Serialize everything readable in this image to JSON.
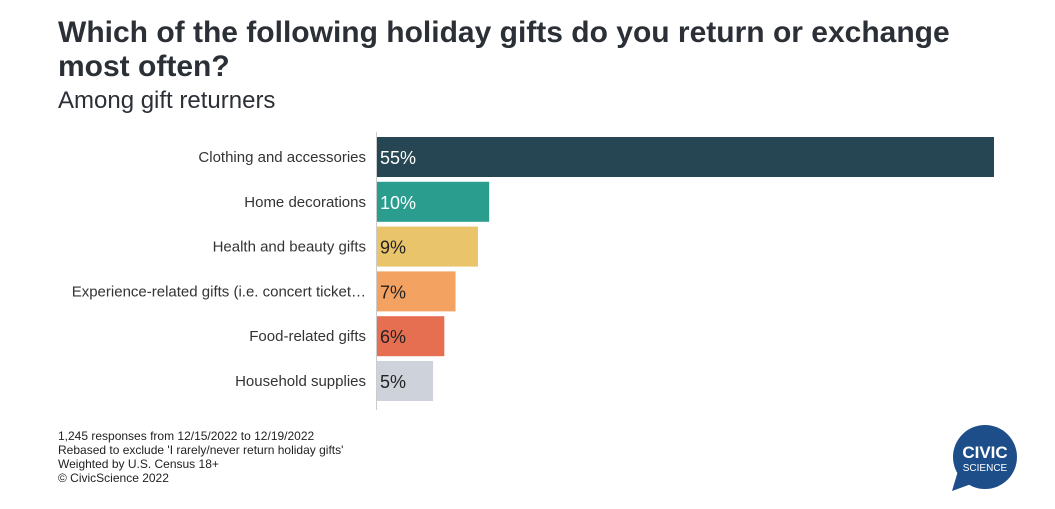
{
  "title": "Which of the following holiday gifts do you return or exchange most often?",
  "subtitle": "Among gift returners",
  "chart_data": {
    "type": "bar",
    "orientation": "horizontal",
    "categories": [
      "Clothing and accessories",
      "Home decorations",
      "Health and beauty gifts",
      "Experience-related gifts (i.e. concert ticket…",
      "Food-related gifts",
      "Household supplies"
    ],
    "values": [
      55,
      10,
      9,
      7,
      6,
      5
    ],
    "value_labels": [
      "55%",
      "10%",
      "9%",
      "7%",
      "6%",
      "5%"
    ],
    "colors": [
      "#264653",
      "#2a9d8f",
      "#e9c46a",
      "#f4a261",
      "#e76f51",
      "#ced2da"
    ],
    "label_colors": [
      "#ffffff",
      "#ffffff",
      "#222222",
      "#222222",
      "#222222",
      "#222222"
    ],
    "xlim": [
      0,
      55
    ],
    "grid": false,
    "legend": "none"
  },
  "footnotes": [
    "1,245 responses from 12/15/2022 to 12/19/2022",
    "Rebased to exclude 'I rarely/never return holiday gifts'",
    "Weighted by U.S. Census 18+",
    "© CivicScience 2022"
  ],
  "logo": {
    "line1": "CIVIC",
    "line2": "SCIENCE",
    "color": "#1d4e89"
  }
}
